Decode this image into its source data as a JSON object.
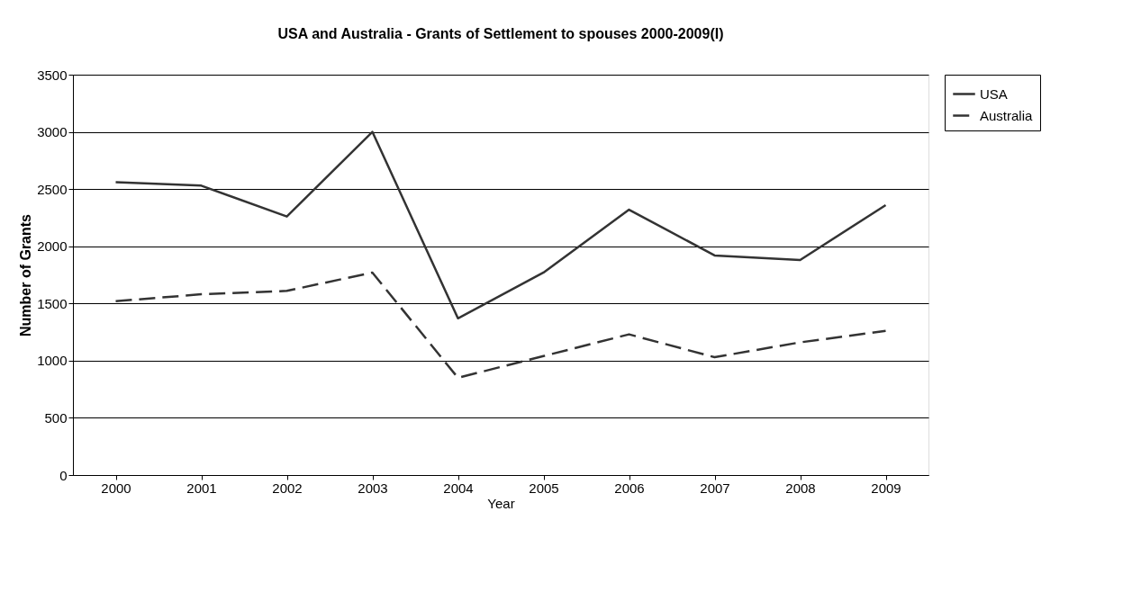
{
  "chart_data": {
    "type": "line",
    "title": "USA and Australia - Grants of Settlement to spouses 2000-2009(I)",
    "xlabel": "Year",
    "ylabel": "Number of Grants",
    "categories": [
      "2000",
      "2001",
      "2002",
      "2003",
      "2004",
      "2005",
      "2006",
      "2007",
      "2008",
      "2009"
    ],
    "series": [
      {
        "name": "USA",
        "color": "#333333",
        "line_style": "solid",
        "values": [
          2560,
          2530,
          2260,
          3000,
          1370,
          1770,
          2320,
          1920,
          1880,
          2360
        ]
      },
      {
        "name": "Australia",
        "color": "#333333",
        "line_style": "dashed",
        "values": [
          1520,
          1580,
          1610,
          1770,
          850,
          1040,
          1230,
          1030,
          1160,
          1260
        ]
      }
    ],
    "ylim": [
      0,
      3500
    ],
    "yticks": [
      0,
      500,
      1000,
      1500,
      2000,
      2500,
      3000,
      3500
    ],
    "grid": "y",
    "legend": "right",
    "marker": "none"
  }
}
